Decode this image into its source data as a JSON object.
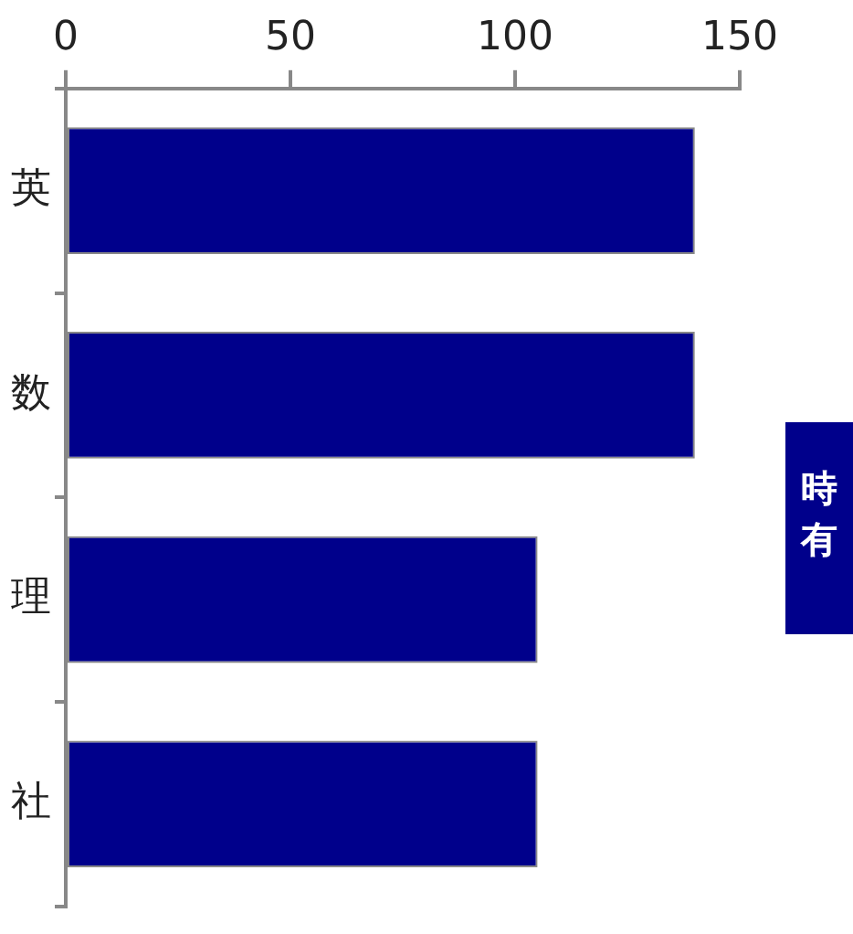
{
  "chart_data": {
    "type": "bar",
    "orientation": "horizontal",
    "categories": [
      "英",
      "数",
      "理",
      "社"
    ],
    "values": [
      140,
      140,
      105,
      105
    ],
    "color": "#00008b",
    "xlim": [
      0,
      150
    ],
    "xticks": [
      0,
      50,
      100,
      150
    ],
    "grid": false,
    "legend": false,
    "annotations": [
      "時",
      "有"
    ]
  }
}
